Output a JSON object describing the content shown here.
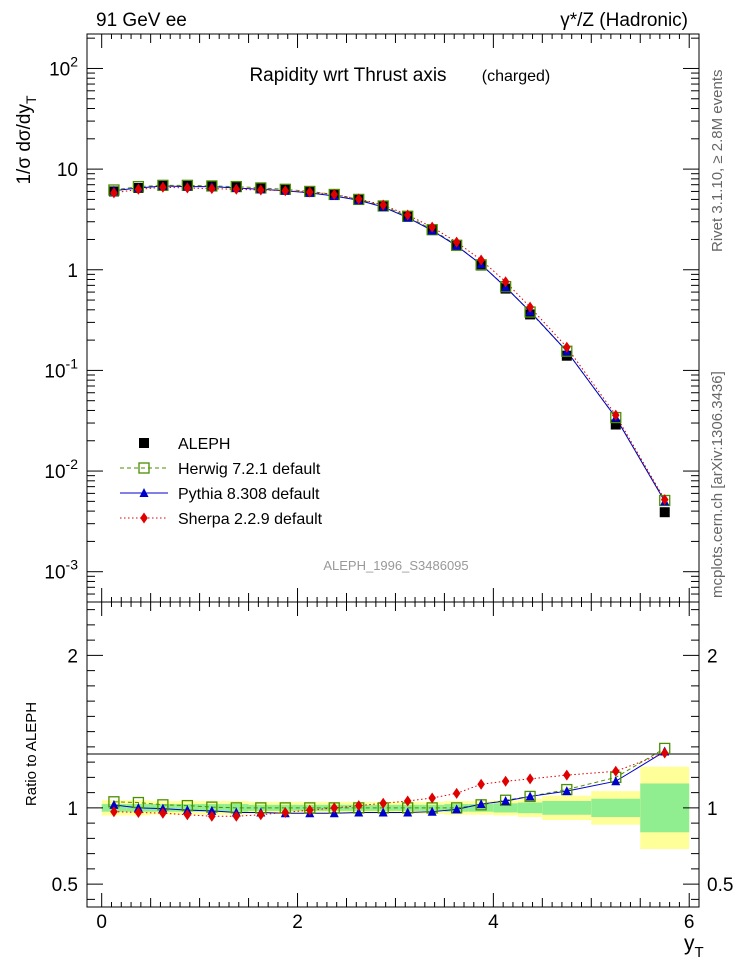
{
  "header": {
    "left": "91 GeV ee",
    "right": "γ*/Z (Hadronic)"
  },
  "side_labels": {
    "right_top": "Rivet 3.1.10, ≥ 2.8M events",
    "right_bottom": "mcplots.cern.ch [arXiv:1306.3436]"
  },
  "watermark": "ALEPH_1996_S3486095",
  "chart_data": [
    {
      "type": "scatter",
      "title": "Rapidity wrt Thrust axis",
      "subtitle": "(charged)",
      "ylabel": "1/σ dσ/dy_T",
      "yscale": "log",
      "ylim": [
        0.0005,
        220
      ],
      "xlim": [
        -0.15,
        6.1
      ],
      "yticks": [
        {
          "v": 0.001,
          "label": "10^-3"
        },
        {
          "v": 0.01,
          "label": "10^-2"
        },
        {
          "v": 0.1,
          "label": "10^-1"
        },
        {
          "v": 1,
          "label": "1"
        },
        {
          "v": 10,
          "label": "10"
        },
        {
          "v": 100,
          "label": "10^2"
        }
      ],
      "x": [
        0.125,
        0.375,
        0.625,
        0.875,
        1.125,
        1.375,
        1.625,
        1.875,
        2.125,
        2.375,
        2.625,
        2.875,
        3.125,
        3.375,
        3.625,
        3.875,
        4.125,
        4.375,
        4.75,
        5.25,
        5.75
      ],
      "legend": {
        "position": "lower-left"
      },
      "series": [
        {
          "name": "ALEPH",
          "marker": "square",
          "color": "#000000",
          "values": [
            6.0,
            6.5,
            6.8,
            6.8,
            6.8,
            6.7,
            6.5,
            6.3,
            6.0,
            5.6,
            5.0,
            4.3,
            3.4,
            2.5,
            1.75,
            1.1,
            0.65,
            0.36,
            0.14,
            0.029,
            0.0039
          ]
        },
        {
          "name": "Herwig 7.2.1 default",
          "marker": "open-square",
          "color": "#4a8f00",
          "line": "dashed",
          "values": [
            6.2,
            6.7,
            6.9,
            6.9,
            6.8,
            6.7,
            6.5,
            6.3,
            6.0,
            5.6,
            5.0,
            4.3,
            3.4,
            2.5,
            1.75,
            1.12,
            0.68,
            0.38,
            0.155,
            0.034,
            0.0051
          ]
        },
        {
          "name": "Pythia 8.308 default",
          "marker": "triangle",
          "color": "#0000cc",
          "line": "solid",
          "values": [
            6.1,
            6.5,
            6.8,
            6.7,
            6.7,
            6.5,
            6.3,
            6.1,
            5.8,
            5.4,
            4.9,
            4.2,
            3.3,
            2.45,
            1.73,
            1.13,
            0.67,
            0.385,
            0.155,
            0.034,
            0.005
          ]
        },
        {
          "name": "Sherpa 2.2.9 default",
          "marker": "diamond",
          "color": "#e00000",
          "line": "dotted",
          "values": [
            5.8,
            6.3,
            6.6,
            6.5,
            6.4,
            6.3,
            6.2,
            6.1,
            5.9,
            5.6,
            5.05,
            4.4,
            3.5,
            2.65,
            1.88,
            1.25,
            0.76,
            0.425,
            0.17,
            0.036,
            0.0052
          ]
        }
      ]
    },
    {
      "type": "scatter",
      "ylabel": "Ratio to ALEPH",
      "xlabel": "y_T",
      "ylim": [
        0.35,
        2.35
      ],
      "xlim": [
        -0.15,
        6.1
      ],
      "xticks": [
        0,
        2,
        4,
        6
      ],
      "yticks": [
        0.5,
        1,
        2
      ],
      "bands": {
        "edges": [
          0,
          0.25,
          0.5,
          0.75,
          1.0,
          1.25,
          1.5,
          1.75,
          2.0,
          2.25,
          2.5,
          2.75,
          3.0,
          3.25,
          3.5,
          3.75,
          4.0,
          4.25,
          4.5,
          5.0,
          5.5,
          6.0
        ],
        "inner": [
          0.025,
          0.025,
          0.025,
          0.025,
          0.025,
          0.025,
          0.02,
          0.02,
          0.02,
          0.02,
          0.02,
          0.02,
          0.02,
          0.02,
          0.025,
          0.025,
          0.03,
          0.035,
          0.045,
          0.06,
          0.16
        ],
        "outer": [
          0.05,
          0.05,
          0.045,
          0.045,
          0.045,
          0.045,
          0.04,
          0.04,
          0.04,
          0.04,
          0.04,
          0.04,
          0.04,
          0.04,
          0.045,
          0.045,
          0.05,
          0.06,
          0.08,
          0.11,
          0.27
        ],
        "inner_color": "#90ee90",
        "outer_color": "#ffff99"
      },
      "series": [
        {
          "name": "Herwig 7.2.1 default",
          "color": "#4a8f00",
          "values": [
            1.04,
            1.035,
            1.02,
            1.015,
            1.005,
            1.0,
            1.0,
            1.0,
            1.0,
            1.0,
            1.0,
            1.0,
            1.0,
            1.0,
            1.0,
            1.02,
            1.05,
            1.075,
            1.12,
            1.2,
            1.39
          ]
        },
        {
          "name": "Pythia 8.308 default",
          "color": "#0000cc",
          "values": [
            1.02,
            1.0,
            0.995,
            0.985,
            0.98,
            0.97,
            0.97,
            0.965,
            0.965,
            0.965,
            0.97,
            0.97,
            0.97,
            0.975,
            0.99,
            1.025,
            1.045,
            1.075,
            1.11,
            1.175,
            1.37
          ]
        },
        {
          "name": "Sherpa 2.2.9 default",
          "color": "#e00000",
          "values": [
            0.975,
            0.97,
            0.965,
            0.955,
            0.945,
            0.945,
            0.955,
            0.97,
            0.985,
            1.0,
            1.015,
            1.03,
            1.045,
            1.065,
            1.095,
            1.155,
            1.175,
            1.19,
            1.215,
            1.24,
            1.36
          ]
        }
      ]
    }
  ]
}
